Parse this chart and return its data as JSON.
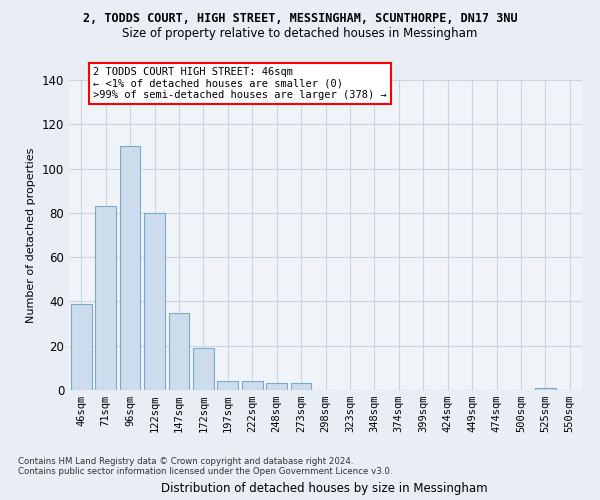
{
  "title_line1": "2, TODDS COURT, HIGH STREET, MESSINGHAM, SCUNTHORPE, DN17 3NU",
  "title_line2": "Size of property relative to detached houses in Messingham",
  "xlabel": "Distribution of detached houses by size in Messingham",
  "ylabel": "Number of detached properties",
  "categories": [
    "46sqm",
    "71sqm",
    "96sqm",
    "122sqm",
    "147sqm",
    "172sqm",
    "197sqm",
    "222sqm",
    "248sqm",
    "273sqm",
    "298sqm",
    "323sqm",
    "348sqm",
    "374sqm",
    "399sqm",
    "424sqm",
    "449sqm",
    "474sqm",
    "500sqm",
    "525sqm",
    "550sqm"
  ],
  "values": [
    39,
    83,
    110,
    80,
    35,
    19,
    4,
    4,
    3,
    3,
    0,
    0,
    0,
    0,
    0,
    0,
    0,
    0,
    0,
    1,
    0
  ],
  "bar_color": "#ccdcec",
  "bar_edge_color": "#7aaac8",
  "ylim": [
    0,
    140
  ],
  "yticks": [
    0,
    20,
    40,
    60,
    80,
    100,
    120,
    140
  ],
  "annotation_box_text": "2 TODDS COURT HIGH STREET: 46sqm\n← <1% of detached houses are smaller (0)\n>99% of semi-detached houses are larger (378) →",
  "footer_line1": "Contains HM Land Registry data © Crown copyright and database right 2024.",
  "footer_line2": "Contains public sector information licensed under the Open Government Licence v3.0.",
  "bg_color": "#e8eef4",
  "plot_bg_color": "#f0f4f8",
  "grid_color": "#c8d4e0"
}
